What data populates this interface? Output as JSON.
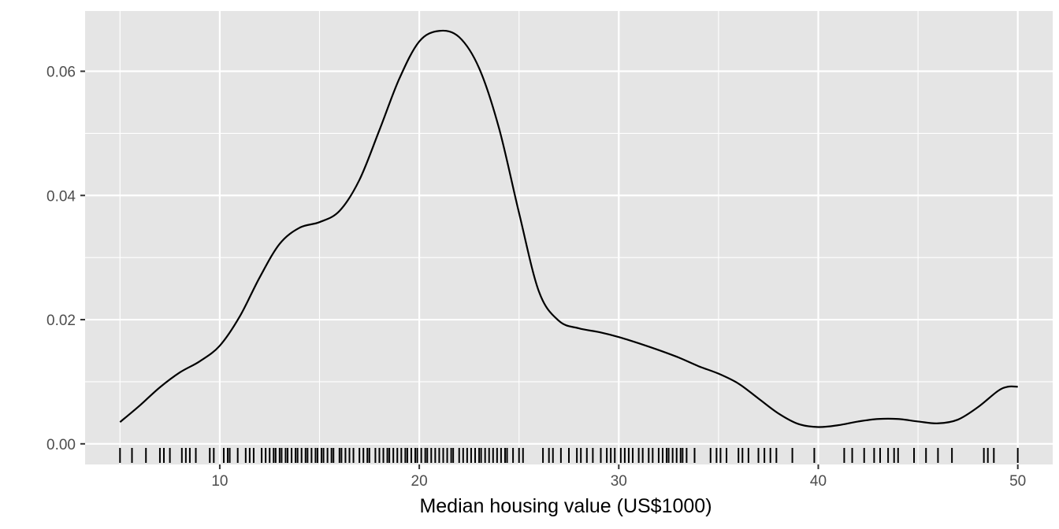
{
  "chart_data": {
    "type": "area",
    "title": "",
    "xlabel": "Median housing value (US$1000)",
    "ylabel": "",
    "xlim": [
      3.25,
      51.75
    ],
    "ylim": [
      -0.00332,
      0.0697
    ],
    "x_ticks": [
      10,
      20,
      30,
      40,
      50
    ],
    "x_tick_labels": [
      "10",
      "20",
      "30",
      "40",
      "50"
    ],
    "y_ticks": [
      0.0,
      0.02,
      0.04,
      0.06
    ],
    "y_tick_labels": [
      "0.00",
      "0.02",
      "0.04",
      "0.06"
    ],
    "grid": true,
    "legend": "none",
    "background_color": "#e5e5e5",
    "grid_color": "#ffffff",
    "line_color": "#000000",
    "density": [
      [
        5.0,
        0.0035
      ],
      [
        6.0,
        0.0062
      ],
      [
        7.0,
        0.0091
      ],
      [
        8.0,
        0.0115
      ],
      [
        9.0,
        0.0133
      ],
      [
        10.0,
        0.0158
      ],
      [
        11.0,
        0.0205
      ],
      [
        12.0,
        0.0268
      ],
      [
        13.0,
        0.0322
      ],
      [
        14.0,
        0.0348
      ],
      [
        15.0,
        0.0357
      ],
      [
        16.0,
        0.0375
      ],
      [
        17.0,
        0.0425
      ],
      [
        18.0,
        0.0505
      ],
      [
        19.0,
        0.0588
      ],
      [
        20.0,
        0.0648
      ],
      [
        21.0,
        0.0665
      ],
      [
        22.0,
        0.0655
      ],
      [
        23.0,
        0.0605
      ],
      [
        24.0,
        0.0508
      ],
      [
        25.0,
        0.0372
      ],
      [
        26.0,
        0.0245
      ],
      [
        27.0,
        0.0198
      ],
      [
        28.0,
        0.0186
      ],
      [
        29.0,
        0.018
      ],
      [
        30.0,
        0.0172
      ],
      [
        31.0,
        0.0162
      ],
      [
        32.0,
        0.0151
      ],
      [
        33.0,
        0.0139
      ],
      [
        34.0,
        0.0125
      ],
      [
        35.0,
        0.0113
      ],
      [
        36.0,
        0.0097
      ],
      [
        37.0,
        0.0073
      ],
      [
        38.0,
        0.0049
      ],
      [
        39.0,
        0.0032
      ],
      [
        40.0,
        0.0027
      ],
      [
        41.0,
        0.003
      ],
      [
        42.0,
        0.0036
      ],
      [
        43.0,
        0.004
      ],
      [
        44.0,
        0.004
      ],
      [
        45.0,
        0.0036
      ],
      [
        46.0,
        0.0033
      ],
      [
        47.0,
        0.0039
      ],
      [
        48.0,
        0.0059
      ],
      [
        49.0,
        0.0085
      ],
      [
        49.5,
        0.0092
      ],
      [
        50.0,
        0.0092
      ]
    ],
    "rug": [
      5.0,
      5.6,
      6.3,
      7.0,
      7.2,
      7.5,
      8.1,
      8.3,
      8.5,
      8.8,
      9.5,
      9.7,
      10.2,
      10.4,
      10.5,
      10.9,
      11.3,
      11.5,
      11.7,
      12.1,
      12.3,
      12.5,
      12.7,
      12.8,
      13.0,
      13.1,
      13.3,
      13.4,
      13.6,
      13.8,
      13.9,
      14.1,
      14.3,
      14.4,
      14.6,
      14.8,
      14.9,
      15.1,
      15.2,
      15.4,
      15.6,
      15.7,
      16.0,
      16.1,
      16.3,
      16.5,
      16.7,
      17.0,
      17.2,
      17.4,
      17.5,
      17.8,
      18.0,
      18.2,
      18.4,
      18.5,
      18.7,
      18.9,
      19.1,
      19.3,
      19.4,
      19.6,
      19.8,
      19.9,
      20.1,
      20.3,
      20.4,
      20.6,
      20.8,
      21.0,
      21.2,
      21.4,
      21.6,
      21.7,
      22.0,
      22.2,
      22.4,
      22.6,
      22.8,
      23.0,
      23.1,
      23.3,
      23.5,
      23.7,
      23.9,
      24.1,
      24.3,
      24.4,
      24.7,
      25.0,
      25.2,
      26.2,
      26.5,
      26.7,
      27.1,
      27.5,
      27.9,
      28.1,
      28.4,
      28.7,
      29.1,
      29.4,
      29.6,
      29.8,
      30.1,
      30.3,
      30.5,
      30.7,
      31.0,
      31.2,
      31.5,
      31.7,
      32.0,
      32.2,
      32.4,
      32.5,
      32.7,
      32.9,
      33.1,
      33.2,
      33.4,
      33.8,
      34.6,
      34.9,
      35.1,
      35.4,
      36.0,
      36.2,
      36.5,
      37.0,
      37.3,
      37.6,
      37.9,
      38.7,
      39.8,
      41.3,
      41.7,
      42.3,
      42.8,
      43.1,
      43.5,
      43.8,
      44.0,
      44.8,
      45.4,
      46.0,
      46.7,
      48.3,
      48.5,
      48.8,
      50.0
    ]
  }
}
